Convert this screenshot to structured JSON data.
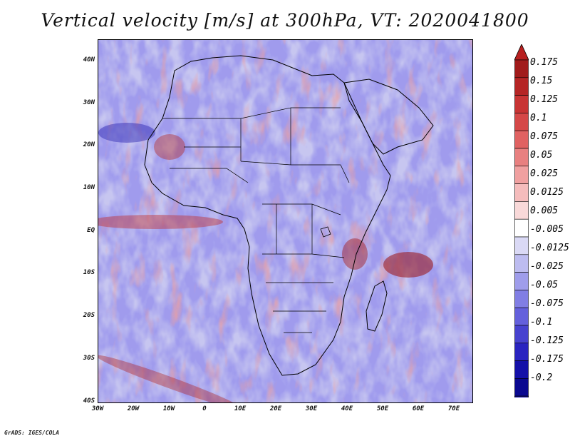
{
  "title": "Vertical velocity [m/s] at 300hPa, VT: 2020041800",
  "credit": "GrADS: IGES/COLA",
  "map": {
    "lon_range": [
      -30,
      78
    ],
    "lat_range": [
      -40,
      45
    ],
    "x_ticks": [
      "30W",
      "20W",
      "10W",
      "0",
      "10E",
      "20E",
      "30E",
      "40E",
      "50E",
      "60E",
      "70E"
    ],
    "y_ticks": [
      "40N",
      "30N",
      "20N",
      "10N",
      "EQ",
      "10S",
      "20S",
      "30S",
      "40S"
    ]
  },
  "colorbar": {
    "labels": [
      "0.175",
      "0.15",
      "0.125",
      "0.1",
      "0.075",
      "0.05",
      "0.025",
      "0.0125",
      "0.005",
      "-0.005",
      "-0.0125",
      "-0.025",
      "-0.05",
      "-0.075",
      "-0.1",
      "-0.125",
      "-0.175",
      "-0.2"
    ],
    "colors": [
      "#a11b1b",
      "#b52525",
      "#c83434",
      "#d54848",
      "#e06262",
      "#e88080",
      "#f0a0a0",
      "#f5bcbc",
      "#f9d9d9",
      "#ffffff",
      "#dad9f5",
      "#bdbcf0",
      "#9f9deb",
      "#817ee4",
      "#6460dc",
      "#4742cf",
      "#2a24c0",
      "#1410a8",
      "#0a0890"
    ],
    "high_color": "#b82020",
    "low_color": "#1a14b0"
  }
}
